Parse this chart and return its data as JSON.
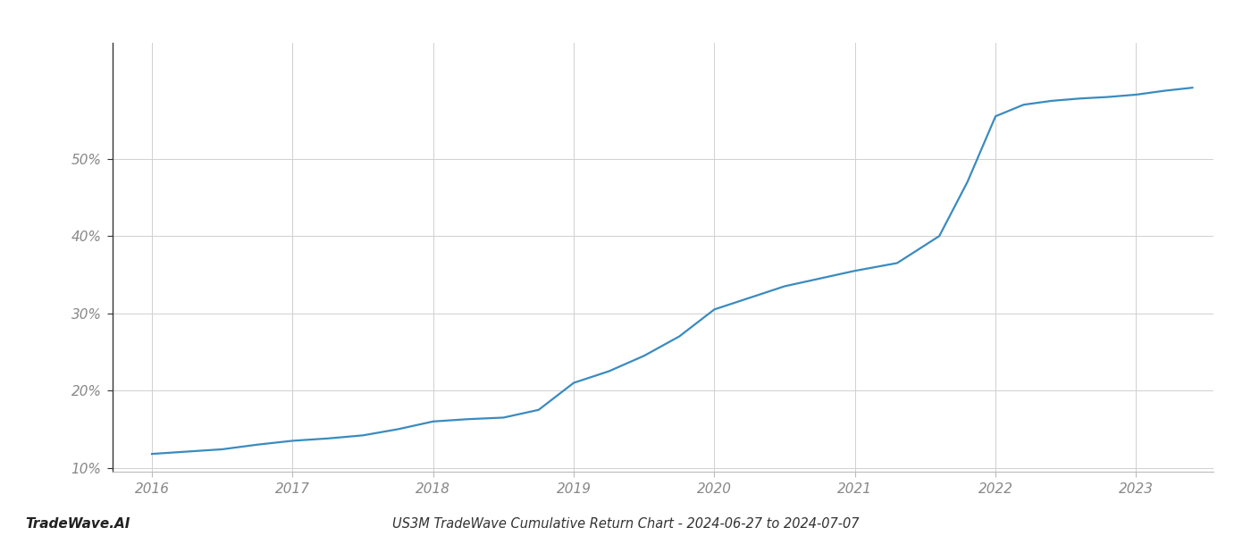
{
  "x_values": [
    2016.0,
    2016.25,
    2016.5,
    2016.75,
    2017.0,
    2017.25,
    2017.5,
    2017.75,
    2018.0,
    2018.25,
    2018.5,
    2018.75,
    2019.0,
    2019.25,
    2019.5,
    2019.75,
    2020.0,
    2020.25,
    2020.5,
    2020.75,
    2021.0,
    2021.15,
    2021.3,
    2021.6,
    2021.8,
    2022.0,
    2022.2,
    2022.4,
    2022.6,
    2022.8,
    2023.0,
    2023.2,
    2023.4
  ],
  "y_values": [
    11.8,
    12.1,
    12.4,
    13.0,
    13.5,
    13.8,
    14.2,
    15.0,
    16.0,
    16.3,
    16.5,
    17.5,
    21.0,
    22.5,
    24.5,
    27.0,
    30.5,
    32.0,
    33.5,
    34.5,
    35.5,
    36.0,
    36.5,
    40.0,
    47.0,
    55.5,
    57.0,
    57.5,
    57.8,
    58.0,
    58.3,
    58.8,
    59.2
  ],
  "line_color": "#3a8bbf",
  "background_color": "#ffffff",
  "grid_color": "#d0d0d0",
  "title_bottom": "US3M TradeWave Cumulative Return Chart - 2024-06-27 to 2024-07-07",
  "watermark": "TradeWave.AI",
  "xlim": [
    2015.72,
    2023.55
  ],
  "ylim": [
    9.5,
    65
  ],
  "yticks": [
    10,
    20,
    30,
    40,
    50
  ],
  "xticks": [
    2016,
    2017,
    2018,
    2019,
    2020,
    2021,
    2022,
    2023
  ],
  "title_fontsize": 10.5,
  "watermark_fontsize": 11,
  "line_width": 1.6,
  "tick_label_color": "#888888",
  "spine_color": "#bbbbbb",
  "left_spine_color": "#333333"
}
